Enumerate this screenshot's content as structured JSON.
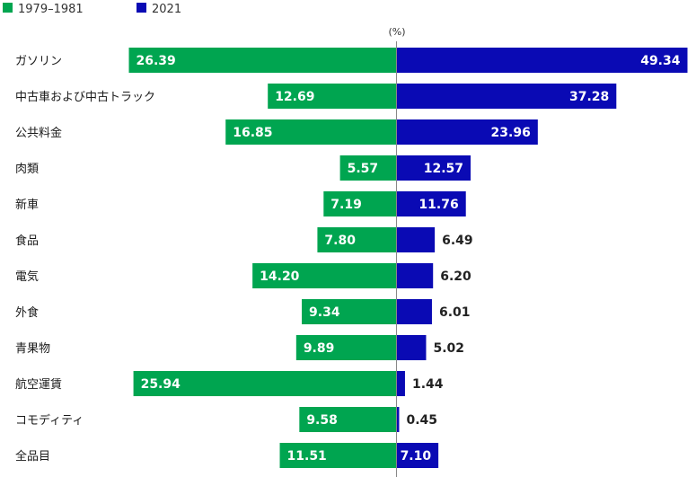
{
  "chart_data": {
    "type": "bar",
    "orientation": "horizontal-diverging",
    "unit": "(%)",
    "categories": [
      "ガソリン",
      "中古車および中古トラック",
      "公共料金",
      "肉類",
      "新車",
      "食品",
      "電気",
      "外食",
      "青果物",
      "航空運賃",
      "コモディティ",
      "全品目"
    ],
    "series": [
      {
        "name": "1979–1981",
        "values": [
          26.39,
          12.69,
          16.85,
          5.57,
          7.19,
          7.8,
          14.2,
          9.34,
          9.89,
          25.94,
          9.58,
          11.51
        ]
      },
      {
        "name": "2021",
        "values": [
          49.34,
          37.28,
          23.96,
          12.57,
          11.76,
          6.49,
          6.2,
          6.01,
          5.02,
          1.44,
          0.45,
          7.1
        ]
      }
    ],
    "value_labels": [
      [
        "26.39",
        "12.69",
        "16.85",
        "5.57",
        "7.19",
        "7.80",
        "14.20",
        "9.34",
        "9.89",
        "25.94",
        "9.58",
        "11.51"
      ],
      [
        "49.34",
        "37.28",
        "23.96",
        "12.57",
        "11.76",
        "6.49",
        "6.20",
        "6.01",
        "5.02",
        "1.44",
        "0.45",
        "7.10"
      ]
    ],
    "legend_position": "top-left",
    "grid": false
  },
  "colors": {
    "series_1979": "#00a550",
    "series_2021": "#0a0ab4",
    "axis": "#888888"
  }
}
